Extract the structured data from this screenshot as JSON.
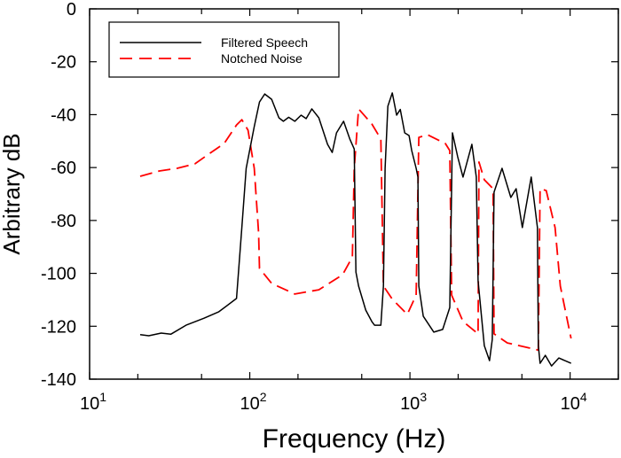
{
  "chart_data": {
    "type": "line",
    "title": "",
    "xlabel": "Frequency (Hz)",
    "ylabel": "Arbitrary dB",
    "xscale": "log",
    "xlim": [
      10,
      20000
    ],
    "ylim": [
      -140,
      0
    ],
    "xticks": [
      10,
      100,
      1000,
      10000
    ],
    "xtick_labels": [
      {
        "base": "10",
        "exp": "1"
      },
      {
        "base": "10",
        "exp": "2"
      },
      {
        "base": "10",
        "exp": "3"
      },
      {
        "base": "10",
        "exp": "4"
      }
    ],
    "yticks": [
      0,
      -20,
      -40,
      -60,
      -80,
      -100,
      -120,
      -140
    ],
    "ytick_labels": [
      "0",
      "-20",
      "-40",
      "-60",
      "-80",
      "-100",
      "-120",
      "-140"
    ],
    "grid": false,
    "legend_position": "top-left",
    "series": [
      {
        "name": "Filtered Speech",
        "color": "#000000",
        "style": "solid",
        "points": [
          [
            20.7,
            -123.2
          ],
          [
            23.4,
            -123.6
          ],
          [
            28,
            -122.6
          ],
          [
            32.2,
            -123
          ],
          [
            40,
            -119.6
          ],
          [
            51.6,
            -117
          ],
          [
            64.1,
            -114.5
          ],
          [
            82.6,
            -109.5
          ],
          [
            89.2,
            -82.7
          ],
          [
            95,
            -60.3
          ],
          [
            106.6,
            -44.5
          ],
          [
            115,
            -35.2
          ],
          [
            124,
            -32.2
          ],
          [
            137,
            -34.2
          ],
          [
            152,
            -41.2
          ],
          [
            162,
            -42.5
          ],
          [
            175,
            -41
          ],
          [
            191,
            -42.5
          ],
          [
            209,
            -40.2
          ],
          [
            225,
            -41.5
          ],
          [
            244,
            -37.8
          ],
          [
            270,
            -41.2
          ],
          [
            306,
            -51.2
          ],
          [
            327,
            -54.3
          ],
          [
            348,
            -46.9
          ],
          [
            385,
            -42.5
          ],
          [
            421,
            -49.2
          ],
          [
            449,
            -53
          ],
          [
            460,
            -99.5
          ],
          [
            478,
            -104.8
          ],
          [
            530,
            -113.9
          ],
          [
            578,
            -118.2
          ],
          [
            601,
            -119.6
          ],
          [
            658,
            -119.6
          ],
          [
            683,
            -104.8
          ],
          [
            700,
            -60.3
          ],
          [
            728,
            -36.8
          ],
          [
            776,
            -31.8
          ],
          [
            826,
            -40.2
          ],
          [
            870,
            -38
          ],
          [
            927,
            -46.9
          ],
          [
            987,
            -47.9
          ],
          [
            1026,
            -53.6
          ],
          [
            1094,
            -60.3
          ],
          [
            1122,
            -63.6
          ],
          [
            1136,
            -104.8
          ],
          [
            1211,
            -116.2
          ],
          [
            1409,
            -122.2
          ],
          [
            1600,
            -121.2
          ],
          [
            1774,
            -112.9
          ],
          [
            1842,
            -46.9
          ],
          [
            1987,
            -55.9
          ],
          [
            2143,
            -63.6
          ],
          [
            2436,
            -51.2
          ],
          [
            2597,
            -63.6
          ],
          [
            2663,
            -102.8
          ],
          [
            2911,
            -127.3
          ],
          [
            3141,
            -133
          ],
          [
            3266,
            -125
          ],
          [
            3350,
            -69.3
          ],
          [
            3757,
            -60.3
          ],
          [
            4266,
            -71.3
          ],
          [
            4600,
            -68
          ],
          [
            5035,
            -82.7
          ],
          [
            5719,
            -63.6
          ],
          [
            6252,
            -82.7
          ],
          [
            6330,
            -127.3
          ],
          [
            6491,
            -134
          ],
          [
            7000,
            -131
          ],
          [
            7655,
            -135
          ],
          [
            8500,
            -132
          ],
          [
            10140,
            -134
          ]
        ]
      },
      {
        "name": "Notched Noise",
        "color": "#ff0000",
        "style": "dashed",
        "points": [
          [
            20.7,
            -63.3
          ],
          [
            27.3,
            -61.3
          ],
          [
            35.2,
            -60.3
          ],
          [
            45.4,
            -58.6
          ],
          [
            56.4,
            -54.6
          ],
          [
            69.2,
            -50.9
          ],
          [
            82.6,
            -43.9
          ],
          [
            89.2,
            -41.9
          ],
          [
            97.5,
            -45.9
          ],
          [
            106.6,
            -60.3
          ],
          [
            113.5,
            -84.7
          ],
          [
            115,
            -98.1
          ],
          [
            137,
            -103.8
          ],
          [
            191,
            -107.8
          ],
          [
            270,
            -106.2
          ],
          [
            380,
            -100.5
          ],
          [
            437,
            -93.8
          ],
          [
            449,
            -60.3
          ],
          [
            478,
            -37.8
          ],
          [
            578,
            -43.5
          ],
          [
            658,
            -49.2
          ],
          [
            683,
            -104.8
          ],
          [
            776,
            -109.8
          ],
          [
            962,
            -115.5
          ],
          [
            1094,
            -108.2
          ],
          [
            1136,
            -48.6
          ],
          [
            1288,
            -47.6
          ],
          [
            1664,
            -50.9
          ],
          [
            1774,
            -53.6
          ],
          [
            1820,
            -108.2
          ],
          [
            2143,
            -118.2
          ],
          [
            2663,
            -122.9
          ],
          [
            2698,
            -57.9
          ],
          [
            2911,
            -64.6
          ],
          [
            3305,
            -68
          ],
          [
            3350,
            -122.9
          ],
          [
            4055,
            -126.3
          ],
          [
            6330,
            -129
          ],
          [
            6491,
            -68
          ],
          [
            7096,
            -68.7
          ],
          [
            8055,
            -82.7
          ],
          [
            8690,
            -104.8
          ],
          [
            10140,
            -124.6
          ]
        ]
      }
    ]
  }
}
